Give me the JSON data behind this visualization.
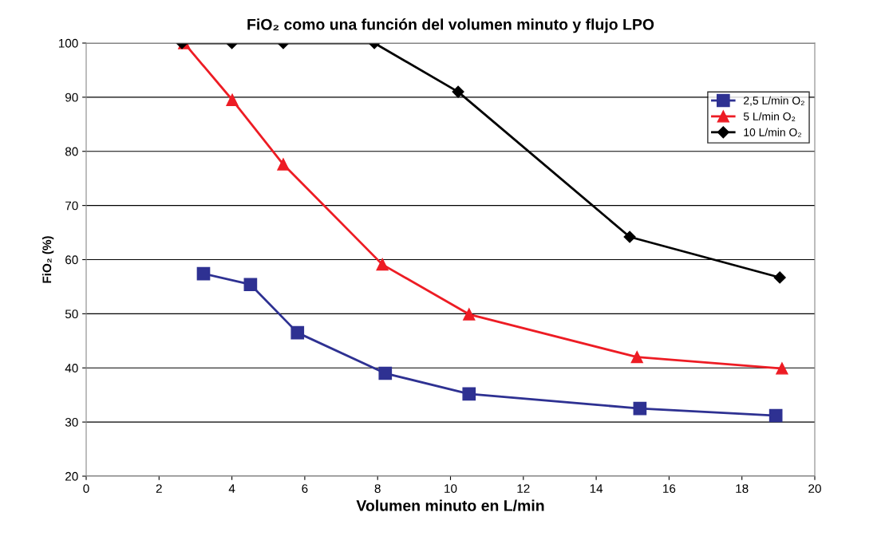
{
  "chart_data": {
    "type": "line",
    "title": "FiO₂ como una función del volumen minuto y flujo LPO",
    "xlabel": "Volumen minuto en L/min",
    "ylabel": "FiO₂ (%)",
    "series": [
      {
        "name": "2,5 L/min O₂",
        "color": "#2e3192",
        "marker": "square",
        "x": [
          3.22,
          4.51,
          5.8,
          8.21,
          10.51,
          15.2,
          18.93
        ],
        "values": [
          57.4,
          55.4,
          46.5,
          39.0,
          35.2,
          32.5,
          31.2
        ]
      },
      {
        "name": "5 L/min O₂",
        "color": "#ed1c24",
        "marker": "triangle",
        "x": [
          2.69,
          4.01,
          5.41,
          8.13,
          10.51,
          15.12,
          19.1
        ],
        "values": [
          100,
          89.5,
          77.6,
          59.1,
          49.9,
          42.0,
          39.9
        ]
      },
      {
        "name": "10 L/min O₂",
        "color": "#000000",
        "marker": "diamond",
        "x": [
          2.63,
          4.0,
          5.41,
          7.91,
          10.21,
          14.92,
          19.04
        ],
        "values": [
          100,
          100,
          100,
          100,
          91.0,
          64.2,
          56.7
        ]
      }
    ],
    "xlim": [
      0,
      20
    ],
    "xticks": [
      0,
      2,
      4,
      6,
      8,
      10,
      12,
      14,
      16,
      18,
      20
    ],
    "ylim": [
      20,
      100
    ],
    "yticks": [
      20,
      30,
      40,
      50,
      60,
      70,
      80,
      90,
      100
    ],
    "grid": "y",
    "legend": "top right",
    "line_style": "solid"
  }
}
